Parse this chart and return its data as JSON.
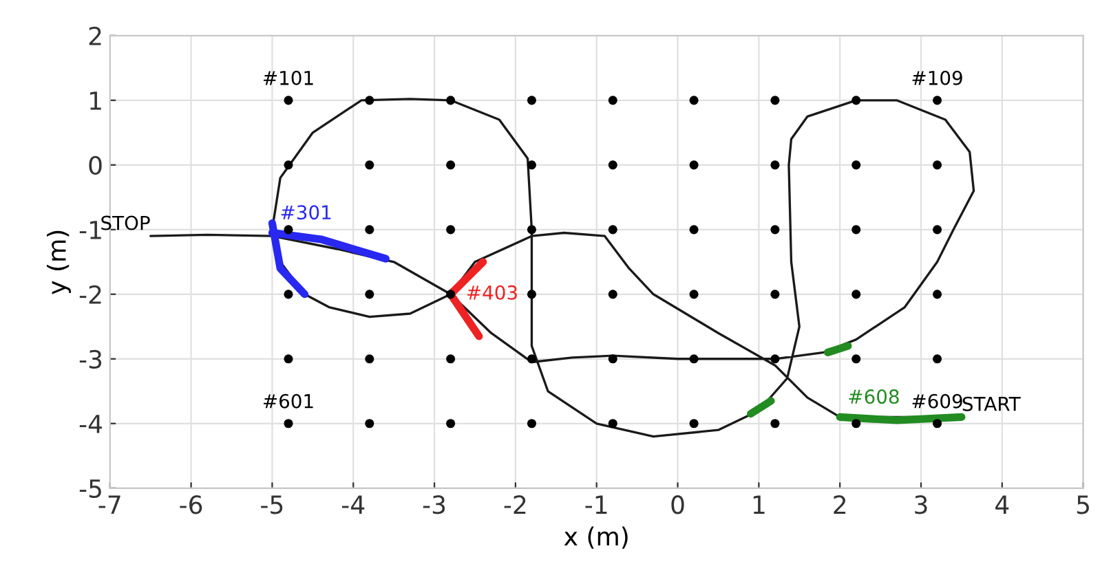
{
  "chart_data": {
    "type": "line",
    "xlabel": "x (m)",
    "ylabel": "y (m)",
    "xlim": [
      -7,
      5
    ],
    "xticks": [
      -7,
      -6,
      -5,
      -4,
      -3,
      -2,
      -1,
      0,
      1,
      2,
      3,
      4,
      5
    ],
    "ylim": [
      -5,
      2
    ],
    "yticks": [
      -5,
      -4,
      -3,
      -2,
      -1,
      0,
      1,
      2
    ],
    "grid": true,
    "legend": false,
    "line_style": "solid",
    "series": [
      {
        "type": "scatter",
        "color": "#000000",
        "marker": "circle",
        "x": [
          -4.8,
          -3.8,
          -2.8,
          -1.8,
          -0.8,
          0.2,
          1.2,
          2.2,
          3.2,
          -4.8,
          -3.8,
          -2.8,
          -1.8,
          -0.8,
          0.2,
          1.2,
          2.2,
          3.2,
          -4.8,
          -3.8,
          -2.8,
          -1.8,
          -0.8,
          0.2,
          1.2,
          2.2,
          3.2,
          -4.8,
          -3.8,
          -2.8,
          -1.8,
          -0.8,
          0.2,
          1.2,
          2.2,
          3.2,
          -4.8,
          -3.8,
          -2.8,
          -1.8,
          -0.8,
          0.2,
          1.2,
          2.2,
          3.2,
          -4.8,
          -3.8,
          -2.8,
          -1.8,
          -0.8,
          0.2,
          1.2,
          2.2,
          3.2
        ],
        "values": [
          1,
          1,
          1,
          1,
          1,
          1,
          1,
          1,
          1,
          0,
          0,
          0,
          0,
          0,
          0,
          0,
          0,
          0,
          -1,
          -1,
          -1,
          -1,
          -1,
          -1,
          -1,
          -1,
          -1,
          -2,
          -2,
          -2,
          -2,
          -2,
          -2,
          -2,
          -2,
          -2,
          -3,
          -3,
          -3,
          -3,
          -3,
          -3,
          -3,
          -3,
          -3,
          -4,
          -4,
          -4,
          -4,
          -4,
          -4,
          -4,
          -4,
          -4
        ]
      },
      {
        "color": "#1a1a1a",
        "marker": "none",
        "x": [
          3.5,
          2.8,
          2.0,
          1.6,
          1.2,
          0.5,
          -0.3,
          -0.6,
          -0.9,
          -1.4,
          -1.8,
          -2.5,
          -2.8,
          -3.3,
          -3.8,
          -4.3,
          -4.6,
          -4.9,
          -5.0,
          -4.9,
          -4.5,
          -3.9,
          -3.3,
          -2.8,
          -2.2,
          -1.85,
          -1.8,
          -1.8,
          -1.6,
          -1.0,
          -0.3,
          0.5,
          1.0,
          1.35,
          1.5,
          1.4,
          1.37,
          1.4,
          1.6,
          2.2,
          2.7,
          3.3,
          3.6,
          3.65,
          3.4,
          3.2,
          2.8,
          2.2,
          1.8,
          1.2,
          0.5,
          0.0,
          -0.8,
          -1.3,
          -1.8,
          -2.3,
          -2.8,
          -3.5,
          -4.2,
          -5.0,
          -5.8,
          -6.5
        ],
        "values": [
          -3.9,
          -3.9,
          -3.9,
          -3.6,
          -3.1,
          -2.6,
          -2.0,
          -1.6,
          -1.1,
          -1.05,
          -1.1,
          -1.5,
          -2.0,
          -2.3,
          -2.35,
          -2.2,
          -2.0,
          -1.5,
          -1.0,
          -0.2,
          0.5,
          1.0,
          1.02,
          1.0,
          0.7,
          0.1,
          -1.0,
          -2.8,
          -3.5,
          -4.0,
          -4.2,
          -4.1,
          -3.8,
          -3.3,
          -2.5,
          -1.5,
          0.0,
          0.4,
          0.75,
          1.0,
          1.0,
          0.7,
          0.2,
          -0.4,
          -1.0,
          -1.5,
          -2.2,
          -2.7,
          -2.9,
          -3.0,
          -3.0,
          -3.0,
          -2.95,
          -2.98,
          -3.05,
          -2.6,
          -2.0,
          -1.5,
          -1.3,
          -1.1,
          -1.08,
          -1.1
        ]
      },
      {
        "name": "#301",
        "color": "#2828f0",
        "marker": "none",
        "x": [
          -5.0,
          -4.4,
          -3.6,
          null,
          -5.0,
          -4.9,
          -4.6
        ],
        "values": [
          -1.05,
          -1.15,
          -1.45,
          null,
          -0.9,
          -1.6,
          -2.0
        ]
      },
      {
        "name": "#403",
        "color": "#ee2222",
        "marker": "none",
        "x": [
          -2.8,
          -2.4,
          null,
          -2.8,
          -2.45
        ],
        "values": [
          -2.0,
          -1.5,
          null,
          -2.0,
          -2.65
        ]
      },
      {
        "name": "#608",
        "color": "#228b22",
        "marker": "none",
        "x": [
          2.0,
          2.7,
          3.5,
          null,
          0.9,
          1.15,
          null,
          1.85,
          2.1
        ],
        "values": [
          -3.9,
          -3.95,
          -3.9,
          null,
          -3.85,
          -3.65,
          null,
          -2.9,
          -2.8
        ]
      }
    ],
    "annotations": [
      {
        "text": "#101",
        "x": -4.8,
        "y": 1
      },
      {
        "text": "#109",
        "x": 3.2,
        "y": 1
      },
      {
        "text": "#601",
        "x": -4.8,
        "y": -4
      },
      {
        "text": "#609",
        "x": 3.2,
        "y": -4
      },
      {
        "text": "STOP",
        "x": -6.5,
        "y": -1.1
      },
      {
        "text": "START",
        "x": 3.5,
        "y": -3.9
      }
    ]
  }
}
